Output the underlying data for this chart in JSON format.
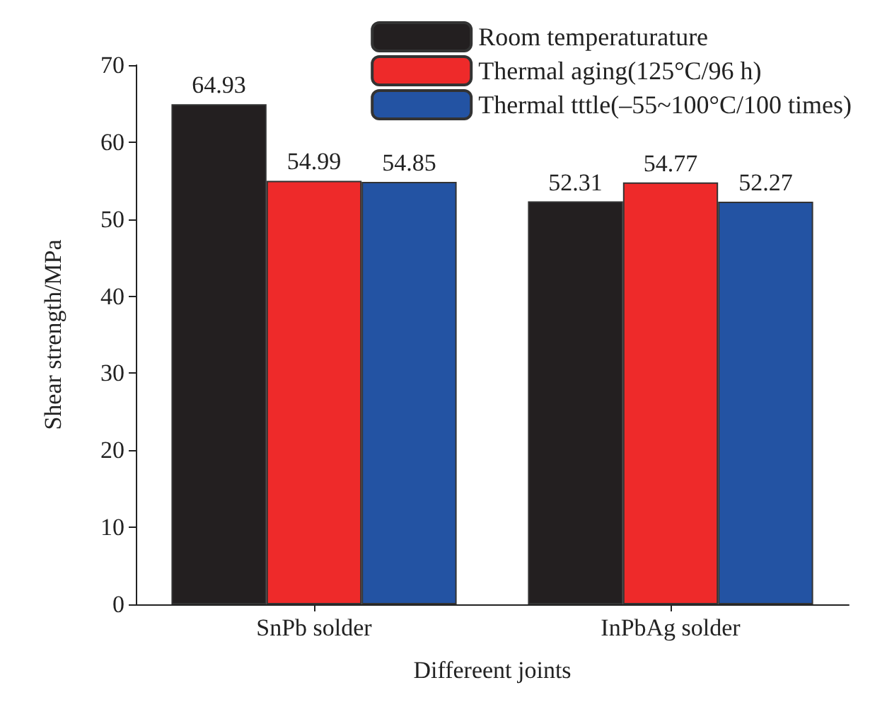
{
  "chart_data": {
    "type": "bar",
    "xlabel": "Differeent joints",
    "ylabel": "Shear strength/MPa",
    "categories": [
      "SnPb solder",
      "InPbAg solder"
    ],
    "series": [
      {
        "name": "Room temperaturature",
        "color": "#231f20",
        "values": [
          64.93,
          52.31
        ]
      },
      {
        "name": "Thermal aging(125°C/96 h)",
        "color": "#ee2a2a",
        "values": [
          54.99,
          54.77
        ]
      },
      {
        "name": "Thermal tttle(–55~100°C/100 times)",
        "color": "#2353a3",
        "values": [
          54.85,
          52.27
        ]
      }
    ],
    "ylim": [
      0,
      70
    ],
    "yticks": [
      0,
      10,
      20,
      30,
      40,
      50,
      60,
      70
    ],
    "grid": false,
    "legend": "top right",
    "data_labels": true
  }
}
